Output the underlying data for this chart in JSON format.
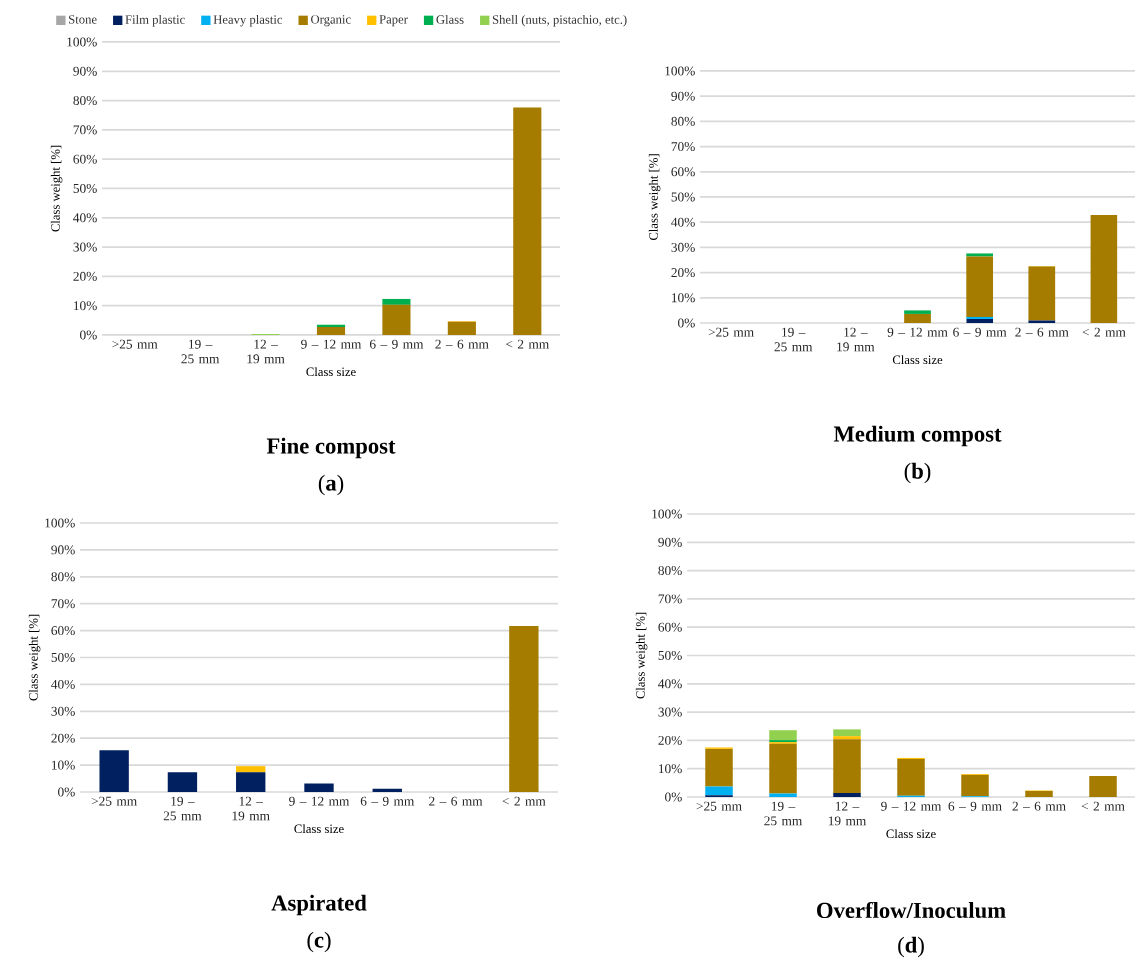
{
  "chart_data": [
    {
      "type": "bar",
      "stacked": true,
      "title": "Fine compost",
      "subtitle": "(**a**)",
      "xlabel": "Class size",
      "ylabel": "Class weight [%]",
      "grid": "y",
      "legend": "top",
      "categories": [
        ">25 mm",
        "19 – 25 mm",
        "12 – 19 mm",
        "9 – 12 mm",
        "6 – 9 mm",
        "2 – 6 mm",
        "< 2 mm"
      ],
      "ylim": [
        0,
        100
      ],
      "yticks": [
        {
          "value": 0,
          "label": "0%"
        },
        {
          "value": 10,
          "label": "10%"
        },
        {
          "value": 20,
          "label": "20%"
        },
        {
          "value": 30,
          "label": "30%"
        },
        {
          "value": 40,
          "label": "40%"
        },
        {
          "value": 50,
          "label": "50%"
        },
        {
          "value": 60,
          "label": "60%"
        },
        {
          "value": 70,
          "label": "70%"
        },
        {
          "value": 80,
          "label": "80%"
        },
        {
          "value": 90,
          "label": "90%"
        },
        {
          "value": 100,
          "label": "100%"
        }
      ],
      "series": [
        {
          "name": "Stone",
          "color": "#a6a6a6",
          "values": [
            0,
            0,
            0,
            0,
            null,
            0,
            0
          ]
        },
        {
          "name": "Film plastic",
          "color": "#002060",
          "values": [
            0,
            0,
            0,
            0,
            0,
            0,
            0
          ]
        },
        {
          "name": "Heavy plastic",
          "color": "#00b0f0",
          "values": [
            0,
            0,
            0,
            0,
            0,
            0,
            0
          ]
        },
        {
          "name": "Organic",
          "color": "#a67c00",
          "values": [
            0,
            0,
            0,
            2.7,
            10.3,
            4.5,
            77.6
          ]
        },
        {
          "name": "Paper",
          "color": "#ffc000",
          "values": [
            0,
            0,
            0,
            0,
            0,
            0.2,
            0
          ]
        },
        {
          "name": "Glass",
          "color": "#00b050",
          "values": [
            0,
            0,
            0,
            0.8,
            2.0,
            0,
            0
          ]
        },
        {
          "name": "Shell (nuts, pistachio, etc.)",
          "color": "#92d050",
          "values": [
            0,
            0,
            0.3,
            0,
            0,
            0,
            0
          ]
        }
      ]
    },
    {
      "type": "bar",
      "stacked": true,
      "title": "Medium compost",
      "subtitle": "(**b**)",
      "xlabel": "Class size",
      "ylabel": "Class weight [%]",
      "grid": "y",
      "categories": [
        ">25 mm",
        "19 – 25 mm",
        "12 – 19 mm",
        "9 – 12 mm",
        "6 – 9 mm",
        "2 – 6 mm",
        "< 2 mm"
      ],
      "ylim": [
        0,
        100
      ],
      "yticks": [
        {
          "value": 0,
          "label": "0%"
        },
        {
          "value": 10,
          "label": "10%"
        },
        {
          "value": 20,
          "label": "20%"
        },
        {
          "value": 30,
          "label": "30%"
        },
        {
          "value": 40,
          "label": "40%"
        },
        {
          "value": 50,
          "label": "50%"
        },
        {
          "value": 60,
          "label": "60%"
        },
        {
          "value": 70,
          "label": "70%"
        },
        {
          "value": 80,
          "label": "80%"
        },
        {
          "value": 90,
          "label": "90%"
        },
        {
          "value": 100,
          "label": "100%"
        }
      ],
      "series": [
        {
          "color": "#a6a6a6",
          "values": [
            0,
            0,
            0,
            null,
            0,
            0,
            0
          ]
        },
        {
          "color": "#002060",
          "values": [
            0,
            0,
            0,
            0,
            1.6,
            1.0,
            0
          ]
        },
        {
          "color": "#00b0f0",
          "values": [
            0,
            0,
            0,
            0,
            0.8,
            0,
            0
          ]
        },
        {
          "color": "#a67c00",
          "values": [
            0,
            0,
            0,
            3.6,
            24.0,
            21.4,
            42.9
          ]
        },
        {
          "color": "#ffc000",
          "values": [
            0,
            0,
            0,
            0,
            null,
            0.2,
            0
          ]
        },
        {
          "color": "#00b050",
          "values": [
            0,
            0,
            0,
            1.4,
            1.2,
            0,
            0
          ]
        },
        {
          "color": "#92d050",
          "values": [
            0,
            0,
            0,
            0,
            0,
            0,
            0
          ]
        }
      ]
    },
    {
      "type": "bar",
      "stacked": true,
      "title": "Aspirated",
      "subtitle": "(**c**)",
      "xlabel": "Class size",
      "ylabel": "Class weight [%]",
      "grid": "y",
      "categories": [
        ">25 mm",
        "19 – 25 mm",
        "12 – 19 mm",
        "9 – 12 mm",
        "6 – 9 mm",
        "2 – 6 mm",
        "< 2 mm"
      ],
      "ylim": [
        0,
        100
      ],
      "yticks": [
        {
          "value": 0,
          "label": "0%"
        },
        {
          "value": 10,
          "label": "10%"
        },
        {
          "value": 20,
          "label": "20%"
        },
        {
          "value": 30,
          "label": "30%"
        },
        {
          "value": 40,
          "label": "40%"
        },
        {
          "value": 50,
          "label": "50%"
        },
        {
          "value": 60,
          "label": "60%"
        },
        {
          "value": 70,
          "label": "70%"
        },
        {
          "value": 80,
          "label": "80%"
        },
        {
          "value": 90,
          "label": "90%"
        },
        {
          "value": 100,
          "label": "100%"
        }
      ],
      "series": [
        {
          "color": "#a6a6a6",
          "values": [
            0,
            0,
            0,
            0,
            0,
            0,
            0
          ]
        },
        {
          "color": "#002060",
          "values": [
            15.5,
            7.3,
            7.3,
            3.2,
            1.2,
            0,
            0
          ]
        },
        {
          "color": "#00b0f0",
          "values": [
            0,
            0,
            0,
            0,
            0,
            0,
            0
          ]
        },
        {
          "color": "#a67c00",
          "values": [
            0,
            0,
            0,
            0,
            0,
            0,
            61.7
          ]
        },
        {
          "color": "#ffc000",
          "values": [
            0,
            0,
            2.3,
            null,
            0,
            0,
            0
          ]
        },
        {
          "color": "#00b050",
          "values": [
            0,
            0,
            0,
            0,
            0,
            0,
            0
          ]
        },
        {
          "color": "#92d050",
          "values": [
            0,
            0,
            0,
            0,
            0,
            0,
            0
          ]
        }
      ]
    },
    {
      "type": "bar",
      "stacked": true,
      "title": "Overflow/Inoculum",
      "subtitle": "(**d**)",
      "xlabel": "Class size",
      "ylabel": "Class weight [%]",
      "grid": "y",
      "categories": [
        ">25 mm",
        "19 – 25 mm",
        "12 – 19 mm",
        "9 – 12 mm",
        "6 – 9 mm",
        "2 – 6 mm",
        "< 2 mm"
      ],
      "ylim": [
        0,
        100
      ],
      "yticks": [
        {
          "value": 0,
          "label": "0%"
        },
        {
          "value": 10,
          "label": "10%"
        },
        {
          "value": 20,
          "label": "20%"
        },
        {
          "value": 30,
          "label": "30%"
        },
        {
          "value": 40,
          "label": "40%"
        },
        {
          "value": 50,
          "label": "50%"
        },
        {
          "value": 60,
          "label": "60%"
        },
        {
          "value": 70,
          "label": "70%"
        },
        {
          "value": 80,
          "label": "80%"
        },
        {
          "value": 90,
          "label": "90%"
        },
        {
          "value": 100,
          "label": "100%"
        }
      ],
      "series": [
        {
          "color": "#a6a6a6",
          "values": [
            0,
            0,
            0,
            0,
            0,
            0,
            0
          ]
        },
        {
          "color": "#002060",
          "values": [
            0.6,
            0,
            1.4,
            0,
            0,
            0,
            0
          ]
        },
        {
          "color": "#00b0f0",
          "values": [
            3.1,
            1.2,
            0,
            0.4,
            0.3,
            0,
            0
          ]
        },
        {
          "color": "#a67c00",
          "values": [
            13.3,
            17.6,
            19.0,
            13.0,
            7.5,
            2.1,
            7.4
          ]
        },
        {
          "color": "#ffc000",
          "values": [
            0.5,
            0.6,
            1.1,
            0.4,
            0.3,
            0.2,
            0
          ]
        },
        {
          "color": "#00b050",
          "values": [
            0,
            0.7,
            0,
            0,
            0,
            0,
            0
          ]
        },
        {
          "color": "#92d050",
          "values": [
            0,
            3.5,
            2.4,
            0,
            0,
            0,
            0
          ]
        }
      ]
    }
  ]
}
